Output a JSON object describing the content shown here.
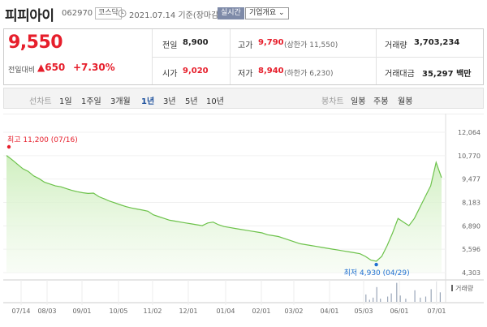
{
  "header": {
    "name": "피피아이",
    "code": "062970",
    "market": "코스닥",
    "date": "2021.07.14 기준(장마감)",
    "realtime": "실시간",
    "overview": "기업개요 ⌄"
  },
  "price": {
    "current": "9,550",
    "change_label": "전일대비",
    "change": "▲650",
    "rate": "+7.30%"
  },
  "stats": {
    "prev_label": "전일",
    "prev": "8,900",
    "open_label": "시가",
    "open": "9,020",
    "high_label": "고가",
    "high": "9,790",
    "upper_limit": "(상한가 11,550)",
    "low_label": "저가",
    "low": "8,940",
    "lower_limit": "(하한가 6,230)",
    "volume_label": "거래량",
    "volume": "3,703,234",
    "amount_label": "거래대금",
    "amount": "35,297 백만"
  },
  "periods": {
    "line_label": "선차트",
    "items": [
      "1일",
      "1주일",
      "3개월",
      "1년",
      "3년",
      "5년",
      "10년"
    ],
    "active": "1년",
    "candle_label": "봉차트",
    "candle_items": [
      "일봉",
      "주봉",
      "월봉"
    ]
  },
  "chart_data": {
    "type": "area",
    "y_ticks": [
      "12,064",
      "10,770",
      "9,477",
      "8,183",
      "6,890",
      "5,596",
      "4,303"
    ],
    "ylim": [
      4303,
      12064
    ],
    "x_ticks": [
      "07/14",
      "08/03",
      "09/01",
      "10/05",
      "11/02",
      "12/01",
      "01/04",
      "02/01",
      "03/02",
      "04/01",
      "05/03",
      "06/01",
      "07/01"
    ],
    "high_annotation": "최고  11,200 (07/16)",
    "low_annotation": "최저  4,930 (04/29)",
    "volume_label": "거래량",
    "colors": {
      "line": "#6cc24a",
      "fill_top": "#cdeebc",
      "high": "#e61e2b",
      "low": "#1f6fd1",
      "volume": "#9aa6b8"
    },
    "x_index_max": 240,
    "series": [
      {
        "values": [
          [
            0,
            10780
          ],
          [
            3,
            10550
          ],
          [
            6,
            10300
          ],
          [
            9,
            10050
          ],
          [
            12,
            9900
          ],
          [
            15,
            9650
          ],
          [
            18,
            9500
          ],
          [
            21,
            9300
          ],
          [
            24,
            9200
          ],
          [
            27,
            9100
          ],
          [
            30,
            9050
          ],
          [
            33,
            8950
          ],
          [
            36,
            8850
          ],
          [
            39,
            8780
          ],
          [
            42,
            8720
          ],
          [
            45,
            8680
          ],
          [
            48,
            8700
          ],
          [
            51,
            8500
          ],
          [
            54,
            8380
          ],
          [
            57,
            8250
          ],
          [
            60,
            8150
          ],
          [
            63,
            8050
          ],
          [
            66,
            7950
          ],
          [
            69,
            7880
          ],
          [
            72,
            7820
          ],
          [
            75,
            7760
          ],
          [
            78,
            7700
          ],
          [
            81,
            7500
          ],
          [
            84,
            7400
          ],
          [
            87,
            7300
          ],
          [
            90,
            7200
          ],
          [
            93,
            7150
          ],
          [
            96,
            7100
          ],
          [
            99,
            7050
          ],
          [
            102,
            7000
          ],
          [
            105,
            6950
          ],
          [
            108,
            6900
          ],
          [
            111,
            7050
          ],
          [
            114,
            7100
          ],
          [
            117,
            6950
          ],
          [
            120,
            6850
          ],
          [
            123,
            6800
          ],
          [
            126,
            6750
          ],
          [
            129,
            6700
          ],
          [
            132,
            6650
          ],
          [
            135,
            6600
          ],
          [
            138,
            6550
          ],
          [
            141,
            6500
          ],
          [
            144,
            6400
          ],
          [
            147,
            6350
          ],
          [
            150,
            6300
          ],
          [
            153,
            6200
          ],
          [
            156,
            6100
          ],
          [
            159,
            6000
          ],
          [
            162,
            5900
          ],
          [
            165,
            5850
          ],
          [
            168,
            5800
          ],
          [
            171,
            5750
          ],
          [
            174,
            5700
          ],
          [
            177,
            5650
          ],
          [
            180,
            5600
          ],
          [
            183,
            5550
          ],
          [
            186,
            5500
          ],
          [
            189,
            5450
          ],
          [
            192,
            5400
          ],
          [
            195,
            5350
          ],
          [
            198,
            5200
          ],
          [
            201,
            5000
          ],
          [
            204,
            4930
          ],
          [
            207,
            5200
          ],
          [
            210,
            5800
          ],
          [
            213,
            6500
          ],
          [
            216,
            7300
          ],
          [
            219,
            7100
          ],
          [
            222,
            6900
          ],
          [
            225,
            7300
          ],
          [
            228,
            7900
          ],
          [
            231,
            8500
          ],
          [
            234,
            9100
          ],
          [
            237,
            10400
          ],
          [
            240,
            9550
          ]
        ]
      }
    ],
    "volume": [
      [
        198,
        0.35
      ],
      [
        200,
        0.1
      ],
      [
        202,
        0.2
      ],
      [
        204,
        0.7
      ],
      [
        206,
        0.15
      ],
      [
        210,
        0.25
      ],
      [
        212,
        0.4
      ],
      [
        215,
        0.9
      ],
      [
        217,
        0.3
      ],
      [
        220,
        0.15
      ],
      [
        225,
        0.55
      ],
      [
        228,
        0.2
      ],
      [
        231,
        0.25
      ],
      [
        234,
        0.6
      ],
      [
        237,
        0.95
      ],
      [
        239,
        0.45
      ]
    ]
  }
}
